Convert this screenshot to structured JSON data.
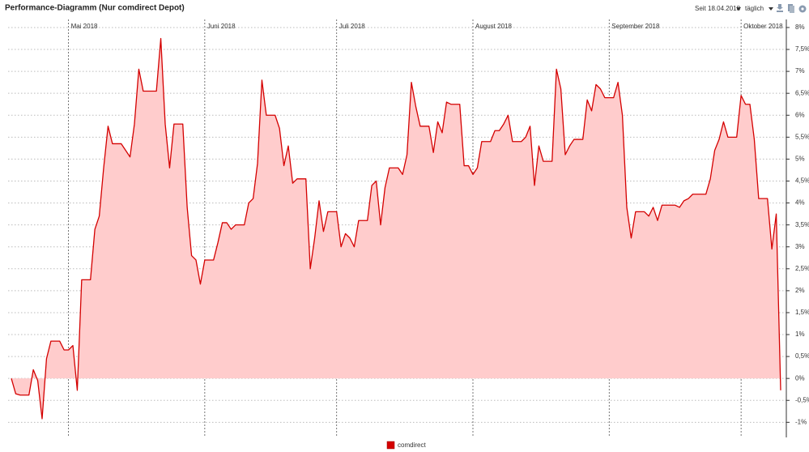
{
  "header": {
    "title": "Performance-Diagramm (Nur comdirect Depot)",
    "since": "Seit 18.04.2018",
    "interval": "täglich"
  },
  "chart_data": {
    "type": "area",
    "categories": [
      null,
      null,
      null,
      null,
      null,
      null,
      null,
      null,
      null,
      null,
      null,
      null,
      null,
      "Mai 2018",
      null,
      null,
      null,
      null,
      null,
      null,
      null,
      null,
      null,
      null,
      null,
      null,
      null,
      null,
      null,
      null,
      null,
      null,
      null,
      null,
      null,
      null,
      null,
      null,
      null,
      null,
      null,
      null,
      null,
      null,
      "Juni 2018",
      null,
      null,
      null,
      null,
      null,
      null,
      null,
      null,
      null,
      null,
      null,
      null,
      null,
      null,
      null,
      null,
      null,
      null,
      null,
      null,
      null,
      null,
      null,
      null,
      null,
      null,
      null,
      null,
      null,
      "Juli 2018",
      null,
      null,
      null,
      null,
      null,
      null,
      null,
      null,
      null,
      null,
      null,
      null,
      null,
      null,
      null,
      null,
      null,
      null,
      null,
      null,
      null,
      null,
      null,
      null,
      null,
      null,
      null,
      null,
      null,
      null,
      "August 2018",
      null,
      null,
      null,
      null,
      null,
      null,
      null,
      null,
      null,
      null,
      null,
      null,
      null,
      null,
      null,
      null,
      null,
      null,
      null,
      null,
      null,
      null,
      null,
      null,
      null,
      null,
      null,
      null,
      null,
      null,
      "September 2018",
      null,
      null,
      null,
      null,
      null,
      null,
      null,
      null,
      null,
      null,
      null,
      null,
      null,
      null,
      null,
      null,
      null,
      null,
      null,
      null,
      null,
      null,
      null,
      null,
      null,
      null,
      null,
      null,
      null,
      "Oktober 2018",
      null,
      null,
      null,
      null,
      null,
      null,
      null,
      null,
      null
    ],
    "series": [
      {
        "name": "comdirect",
        "color": "#d40000",
        "fill": "#ffcccc",
        "values": [
          0,
          -0.35,
          -0.38,
          -0.38,
          -0.38,
          0.2,
          -0.05,
          -0.92,
          0.45,
          0.85,
          0.85,
          0.85,
          0.65,
          0.65,
          0.75,
          -0.27,
          2.25,
          2.25,
          2.25,
          3.4,
          3.7,
          4.8,
          5.75,
          5.35,
          5.35,
          5.35,
          5.2,
          5.05,
          5.8,
          7.05,
          6.55,
          6.55,
          6.55,
          6.55,
          7.75,
          5.8,
          4.8,
          5.8,
          5.8,
          5.8,
          3.9,
          2.8,
          2.7,
          2.15,
          2.7,
          2.7,
          2.7,
          3.1,
          3.55,
          3.55,
          3.4,
          3.5,
          3.5,
          3.5,
          4.0,
          4.1,
          4.9,
          6.8,
          6.0,
          6.0,
          6.0,
          5.7,
          4.85,
          5.3,
          4.45,
          4.55,
          4.55,
          4.55,
          2.5,
          3.2,
          4.05,
          3.35,
          3.8,
          3.8,
          3.8,
          3.0,
          3.3,
          3.2,
          3.0,
          3.6,
          3.6,
          3.6,
          4.4,
          4.5,
          3.5,
          4.35,
          4.8,
          4.8,
          4.8,
          4.65,
          5.1,
          6.75,
          6.2,
          5.75,
          5.75,
          5.75,
          5.15,
          5.85,
          5.6,
          6.3,
          6.25,
          6.25,
          6.25,
          4.85,
          4.85,
          4.65,
          4.8,
          5.4,
          5.4,
          5.4,
          5.65,
          5.65,
          5.8,
          6.0,
          5.4,
          5.4,
          5.4,
          5.5,
          5.75,
          4.4,
          5.3,
          4.95,
          4.95,
          4.95,
          7.05,
          6.6,
          5.1,
          5.3,
          5.45,
          5.45,
          5.45,
          6.35,
          6.1,
          6.7,
          6.6,
          6.4,
          6.4,
          6.4,
          6.75,
          6.0,
          3.9,
          3.2,
          3.8,
          3.8,
          3.8,
          3.7,
          3.9,
          3.6,
          3.95,
          3.95,
          3.95,
          3.95,
          3.9,
          4.05,
          4.1,
          4.2,
          4.2,
          4.2,
          4.2,
          4.55,
          5.2,
          5.45,
          5.85,
          5.5,
          5.5,
          5.5,
          6.45,
          6.25,
          6.25,
          5.45,
          4.1,
          4.1,
          4.1,
          2.95,
          3.75,
          -0.27
        ]
      }
    ],
    "ylim": [
      -1.16,
      8.11
    ],
    "yticks": [
      {
        "value": -1,
        "label": "-1%"
      },
      {
        "value": -0.5,
        "label": "-0,5%"
      },
      {
        "value": 0,
        "label": "0%"
      },
      {
        "value": 0.5,
        "label": "0,5%"
      },
      {
        "value": 1,
        "label": "1%"
      },
      {
        "value": 1.5,
        "label": "1,5%"
      },
      {
        "value": 2,
        "label": "2%"
      },
      {
        "value": 2.5,
        "label": "2,5%"
      },
      {
        "value": 3,
        "label": "3%"
      },
      {
        "value": 3.5,
        "label": "3,5%"
      },
      {
        "value": 4,
        "label": "4%"
      },
      {
        "value": 4.5,
        "label": "4,5%"
      },
      {
        "value": 5,
        "label": "5%"
      },
      {
        "value": 5.5,
        "label": "5,5%"
      },
      {
        "value": 6,
        "label": "6%"
      },
      {
        "value": 6.5,
        "label": "6,5%"
      },
      {
        "value": 7,
        "label": "7%"
      },
      {
        "value": 7.5,
        "label": "7,5%"
      },
      {
        "value": 8,
        "label": "8%"
      }
    ],
    "grid": true,
    "y_axis_side": "right",
    "legend": "bottom"
  }
}
